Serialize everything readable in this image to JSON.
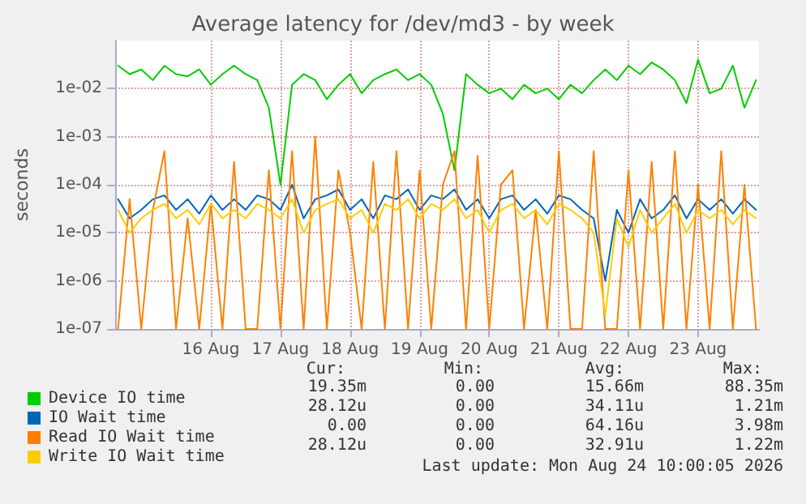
{
  "chart_data": {
    "type": "line",
    "title": "Average latency for /dev/md3 - by week",
    "ylabel": "seconds",
    "x": [
      "2026-08-15T04:00",
      "2026-08-15T08:00",
      "2026-08-15T12:00",
      "2026-08-15T16:00",
      "2026-08-15T20:00",
      "2026-08-16T00:00",
      "2026-08-16T04:00",
      "2026-08-16T08:00",
      "2026-08-16T12:00",
      "2026-08-16T16:00",
      "2026-08-16T20:00",
      "2026-08-17T00:00",
      "2026-08-17T04:00",
      "2026-08-17T08:00",
      "2026-08-17T12:00",
      "2026-08-17T16:00",
      "2026-08-17T20:00",
      "2026-08-18T00:00",
      "2026-08-18T04:00",
      "2026-08-18T08:00",
      "2026-08-18T12:00",
      "2026-08-18T16:00",
      "2026-08-18T20:00",
      "2026-08-19T00:00",
      "2026-08-19T04:00",
      "2026-08-19T08:00",
      "2026-08-19T12:00",
      "2026-08-19T16:00",
      "2026-08-19T20:00",
      "2026-08-20T00:00",
      "2026-08-20T04:00",
      "2026-08-20T08:00",
      "2026-08-20T12:00",
      "2026-08-20T16:00",
      "2026-08-20T20:00",
      "2026-08-21T00:00",
      "2026-08-21T04:00",
      "2026-08-21T08:00",
      "2026-08-21T12:00",
      "2026-08-21T16:00",
      "2026-08-21T20:00",
      "2026-08-22T00:00",
      "2026-08-22T04:00",
      "2026-08-22T08:00",
      "2026-08-22T12:00",
      "2026-08-22T16:00",
      "2026-08-22T20:00",
      "2026-08-23T00:00",
      "2026-08-23T04:00",
      "2026-08-23T08:00",
      "2026-08-23T12:00",
      "2026-08-23T16:00",
      "2026-08-23T20:00",
      "2026-08-24T00:00",
      "2026-08-24T04:00",
      "2026-08-24T08:00"
    ],
    "series": [
      {
        "name": "Device IO time",
        "color": "#00cc00",
        "values": [
          0.03,
          0.02,
          0.025,
          0.015,
          0.03,
          0.02,
          0.018,
          0.025,
          0.012,
          0.02,
          0.03,
          0.02,
          0.015,
          0.004,
          0.0001,
          0.012,
          0.02,
          0.015,
          0.006,
          0.012,
          0.02,
          0.008,
          0.015,
          0.02,
          0.025,
          0.015,
          0.02,
          0.012,
          0.003,
          0.0002,
          0.02,
          0.012,
          0.008,
          0.01,
          0.006,
          0.012,
          0.008,
          0.01,
          0.006,
          0.012,
          0.008,
          0.015,
          0.025,
          0.015,
          0.03,
          0.02,
          0.035,
          0.025,
          0.015,
          0.005,
          0.04,
          0.008,
          0.01,
          0.03,
          0.004,
          0.015
        ]
      },
      {
        "name": "IO Wait time",
        "color": "#0066b3",
        "values": [
          5e-05,
          2e-05,
          3e-05,
          5e-05,
          6e-05,
          3e-05,
          5e-05,
          2.5e-05,
          6e-05,
          3e-05,
          5e-05,
          3e-05,
          6e-05,
          5e-05,
          3e-05,
          0.0001,
          2e-05,
          5e-05,
          6e-05,
          8e-05,
          3e-05,
          5e-05,
          2e-05,
          6e-05,
          5e-05,
          8e-05,
          3e-05,
          6e-05,
          5e-05,
          8e-05,
          3e-05,
          5e-05,
          2e-05,
          5e-05,
          6e-05,
          3e-05,
          5e-05,
          2.5e-05,
          6e-05,
          5e-05,
          3e-05,
          2e-05,
          1e-06,
          3e-05,
          1e-05,
          5e-05,
          2e-05,
          3e-05,
          6e-05,
          2e-05,
          5e-05,
          3e-05,
          5e-05,
          2.5e-05,
          5e-05,
          3e-05
        ]
      },
      {
        "name": "Read IO Wait time",
        "color": "#ff8000",
        "values": [
          1e-07,
          5e-05,
          1e-07,
          3e-05,
          0.0005,
          1e-07,
          2e-05,
          1e-07,
          4e-05,
          1e-07,
          0.0003,
          1e-07,
          1e-07,
          0.0002,
          1e-07,
          0.0005,
          1e-07,
          0.001,
          1e-07,
          0.0002,
          1e-05,
          1e-07,
          0.0003,
          1e-07,
          0.0005,
          1e-07,
          0.0002,
          1e-07,
          0.0001,
          0.0005,
          1e-07,
          0.0004,
          1e-07,
          0.0001,
          0.0002,
          1e-07,
          3e-05,
          1e-07,
          0.0005,
          1e-07,
          1e-07,
          0.0005,
          1e-07,
          1e-07,
          0.0002,
          1e-07,
          0.0003,
          1e-07,
          0.0005,
          1e-07,
          0.0001,
          1e-07,
          0.0005,
          1e-07,
          0.0001,
          1e-07
        ]
      },
      {
        "name": "Write IO Wait time",
        "color": "#ffcc00",
        "values": [
          3e-05,
          1e-05,
          2e-05,
          3e-05,
          4e-05,
          2e-05,
          3e-05,
          1.5e-05,
          4e-05,
          2e-05,
          3e-05,
          2e-05,
          4e-05,
          3e-05,
          2e-05,
          5e-05,
          1e-05,
          3e-05,
          4e-05,
          5e-05,
          2e-05,
          3e-05,
          1e-05,
          4e-05,
          3e-05,
          5e-05,
          2e-05,
          4e-05,
          3e-05,
          5e-05,
          2e-05,
          3e-05,
          1e-05,
          3e-05,
          4e-05,
          2e-05,
          3e-05,
          1.5e-05,
          4e-05,
          3e-05,
          2e-05,
          1e-05,
          2e-07,
          2e-05,
          5e-06,
          3e-05,
          1e-05,
          2e-05,
          4e-05,
          1e-05,
          3e-05,
          2e-05,
          3e-05,
          1.5e-05,
          3e-05,
          2e-05
        ]
      }
    ],
    "xlim": [
      "2026-08-15T03:00",
      "2026-08-24T09:00"
    ],
    "xticks": [
      {
        "value": "2026-08-16T12:00",
        "label": "16 Aug"
      },
      {
        "value": "2026-08-17T12:00",
        "label": "17 Aug"
      },
      {
        "value": "2026-08-18T12:00",
        "label": "18 Aug"
      },
      {
        "value": "2026-08-19T12:00",
        "label": "19 Aug"
      },
      {
        "value": "2026-08-20T12:00",
        "label": "20 Aug"
      },
      {
        "value": "2026-08-21T12:00",
        "label": "21 Aug"
      },
      {
        "value": "2026-08-22T12:00",
        "label": "22 Aug"
      },
      {
        "value": "2026-08-23T12:00",
        "label": "23 Aug"
      }
    ],
    "ylim": [
      1e-07,
      0.1
    ],
    "yticks": [
      {
        "value": 1e-07,
        "label": "1e-07"
      },
      {
        "value": 1e-06,
        "label": "1e-06"
      },
      {
        "value": 1e-05,
        "label": "1e-05"
      },
      {
        "value": 0.0001,
        "label": "1e-04"
      },
      {
        "value": 0.001,
        "label": "1e-03"
      },
      {
        "value": 0.01,
        "label": "1e-02"
      }
    ],
    "log": "y",
    "grid": true,
    "legend": "bottom",
    "marker": "none",
    "line_style": "solid",
    "annotations": [
      "Cur:",
      "Min:",
      "Avg:",
      "Max:",
      "19.35m",
      "0.00",
      "15.66m",
      "88.35m",
      "28.12u",
      "0.00",
      "34.11u",
      "1.21m",
      "0.00",
      "0.00",
      "64.16u",
      "3.98m",
      "28.12u",
      "0.00",
      "32.91u",
      "1.22m",
      "Last update: Mon Aug 24 10:00:05 2026"
    ]
  }
}
